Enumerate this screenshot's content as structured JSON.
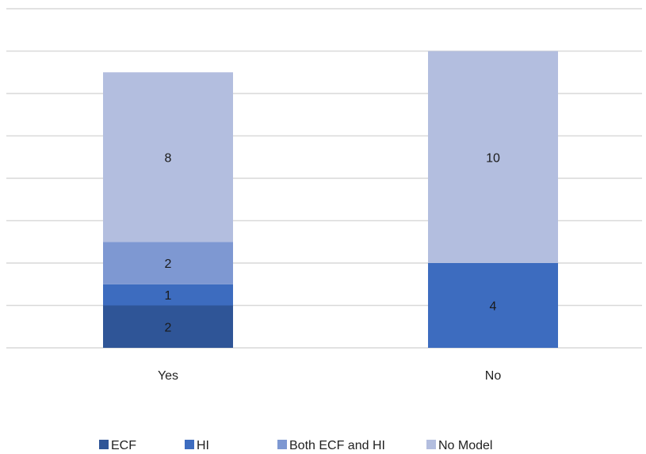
{
  "chart_data": {
    "type": "bar",
    "stacked": true,
    "categories": [
      "Yes",
      "No"
    ],
    "series": [
      {
        "name": "ECF",
        "values": [
          2,
          0
        ],
        "color": "#2F5597"
      },
      {
        "name": "HI",
        "values": [
          1,
          4
        ],
        "color": "#3D6CBF"
      },
      {
        "name": "Both ECF and HI",
        "values": [
          2,
          0
        ],
        "color": "#7E98D2"
      },
      {
        "name": "No Model",
        "values": [
          8,
          10
        ],
        "color": "#B3BEDF"
      }
    ],
    "ylim": [
      0,
      16
    ],
    "grid": true,
    "legend": "bottom",
    "title": "",
    "xlabel": "",
    "ylabel": ""
  }
}
